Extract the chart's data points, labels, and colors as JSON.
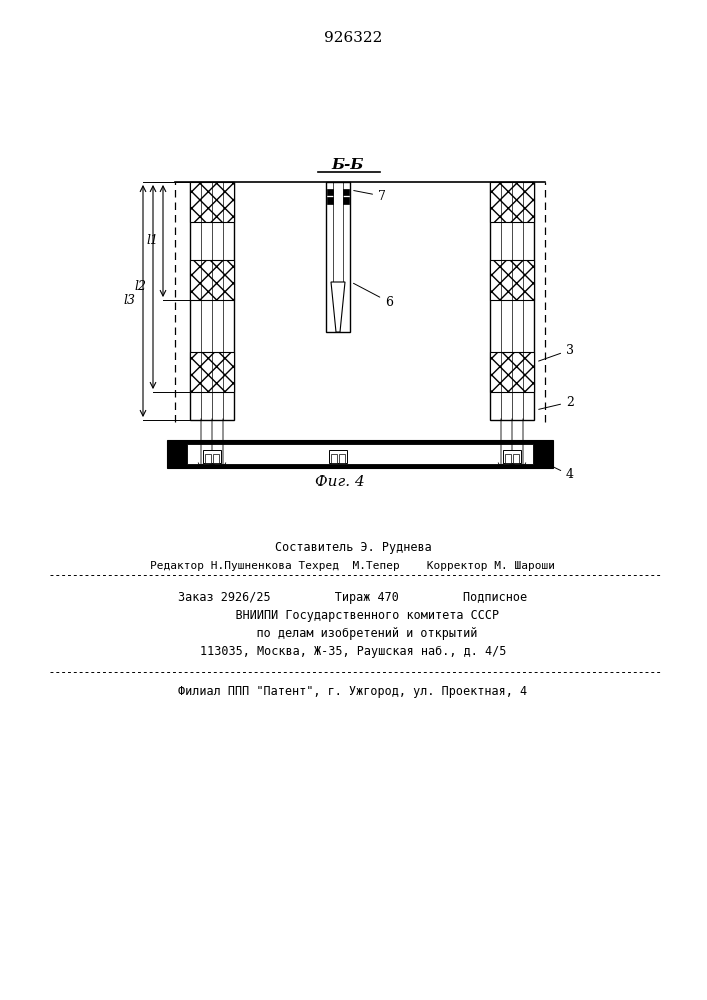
{
  "patent_number": "926322",
  "section_label": "Б-Б",
  "fig_label": "Фиг. 4",
  "label_2": "2",
  "label_3": "3",
  "label_4": "4",
  "label_6": "6",
  "label_7": "7",
  "dim_l1": "l1",
  "dim_l2": "l2",
  "dim_l3": "l3",
  "line1": "Составитель Э. Руднева",
  "line2": "Редактор Н.Пушненкова Техред  М.Тепер    Корректор М. Шароши",
  "line3": "Заказ 2926/25         Тираж 470         Подписное",
  "line4": "    ВНИИПИ Государственного комитета СССР",
  "line5": "    по делам изобретений и открытий",
  "line6": "113035, Москва, Ж-35, Раушская наб., д. 4/5",
  "line7": "Филиал ППП \"Патент\", г. Ужгород, ул. Проектная, 4",
  "bg_color": "#ffffff"
}
